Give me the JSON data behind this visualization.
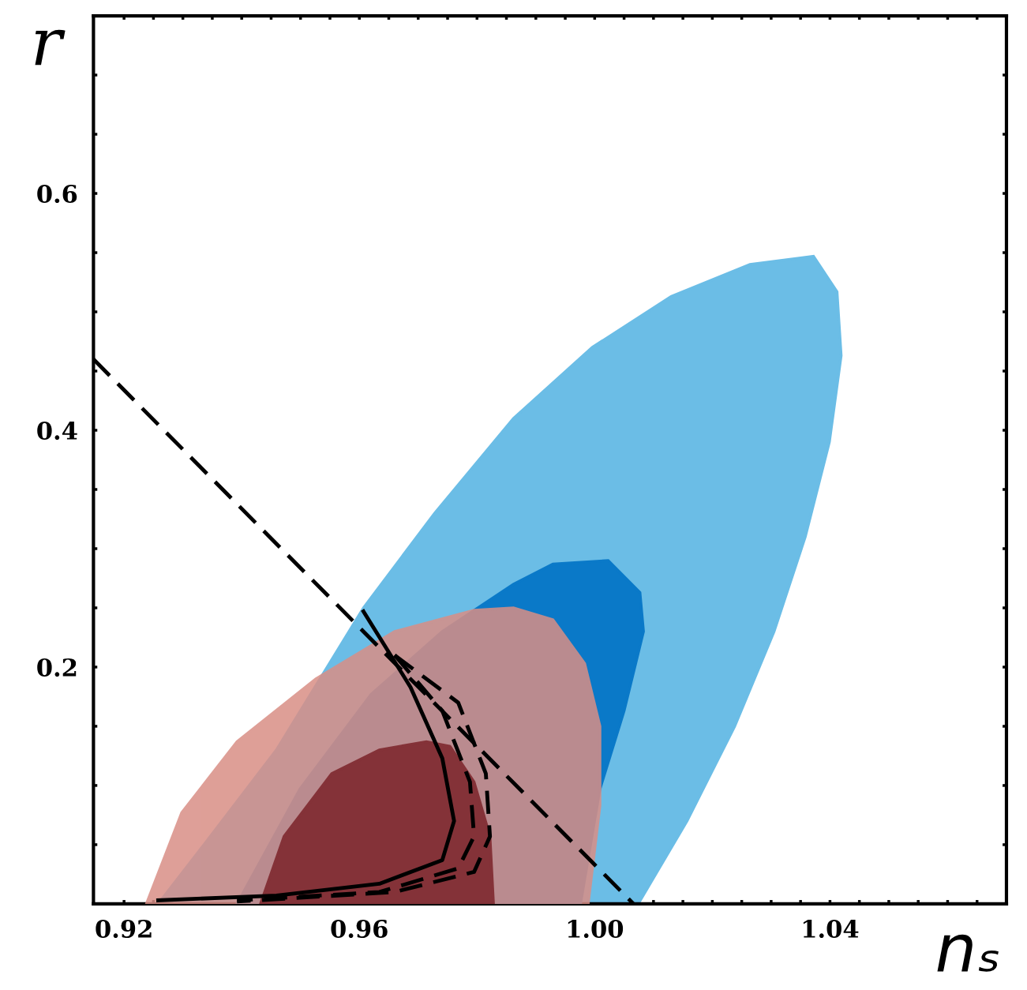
{
  "chart_data": {
    "type": "area",
    "xlabel": "nₛ",
    "ylabel": "r",
    "xlim": [
      0.9148,
      1.07
    ],
    "ylim": [
      0,
      0.75
    ],
    "xticks": [
      {
        "value": 0.92,
        "label": "0.92"
      },
      {
        "value": 0.925,
        "label": null
      },
      {
        "value": 0.93,
        "label": null
      },
      {
        "value": 0.935,
        "label": null
      },
      {
        "value": 0.94,
        "label": null
      },
      {
        "value": 0.945,
        "label": null
      },
      {
        "value": 0.95,
        "label": null
      },
      {
        "value": 0.955,
        "label": null
      },
      {
        "value": 0.96,
        "label": "0.96"
      },
      {
        "value": 0.965,
        "label": null
      },
      {
        "value": 0.97,
        "label": null
      },
      {
        "value": 0.975,
        "label": null
      },
      {
        "value": 0.98,
        "label": null
      },
      {
        "value": 0.985,
        "label": null
      },
      {
        "value": 0.99,
        "label": null
      },
      {
        "value": 0.995,
        "label": null
      },
      {
        "value": 1.0,
        "label": "1.00"
      },
      {
        "value": 1.005,
        "label": null
      },
      {
        "value": 1.01,
        "label": null
      },
      {
        "value": 1.015,
        "label": null
      },
      {
        "value": 1.02,
        "label": null
      },
      {
        "value": 1.025,
        "label": null
      },
      {
        "value": 1.03,
        "label": null
      },
      {
        "value": 1.035,
        "label": null
      },
      {
        "value": 1.04,
        "label": "1.04"
      },
      {
        "value": 1.045,
        "label": null
      },
      {
        "value": 1.05,
        "label": null
      },
      {
        "value": 1.055,
        "label": null
      },
      {
        "value": 1.06,
        "label": null
      },
      {
        "value": 1.065,
        "label": null
      }
    ],
    "yticks": [
      {
        "value": 0.05,
        "label": null
      },
      {
        "value": 0.1,
        "label": null
      },
      {
        "value": 0.15,
        "label": null
      },
      {
        "value": 0.2,
        "label": "0.2"
      },
      {
        "value": 0.25,
        "label": null
      },
      {
        "value": 0.3,
        "label": null
      },
      {
        "value": 0.35,
        "label": null
      },
      {
        "value": 0.4,
        "label": "0.4"
      },
      {
        "value": 0.45,
        "label": null
      },
      {
        "value": 0.5,
        "label": null
      },
      {
        "value": 0.55,
        "label": null
      },
      {
        "value": 0.6,
        "label": "0.6"
      },
      {
        "value": 0.65,
        "label": null
      },
      {
        "value": 0.7,
        "label": null
      }
    ],
    "grid": false,
    "legend": false,
    "series": [
      {
        "color": "#6bbde6",
        "x": [
          0.9258,
          0.9325,
          0.9459,
          0.9607,
          0.9728,
          0.9862,
          0.9996,
          1.013,
          1.0264,
          1.0372,
          1.0412,
          1.0419,
          1.0399,
          1.0358,
          1.0305,
          1.0238,
          1.0157,
          1.0074
        ],
        "values": [
          0,
          0.043,
          0.13,
          0.25,
          0.33,
          0.41,
          0.47,
          0.513,
          0.54,
          0.547,
          0.517,
          0.463,
          0.39,
          0.31,
          0.23,
          0.15,
          0.07,
          0
        ]
      },
      {
        "color": "#0a79c8",
        "x": [
          0.9392,
          0.9499,
          0.962,
          0.9741,
          0.9862,
          0.9929,
          1.0023,
          1.0077,
          1.0083,
          1.005,
          1.0009,
          0.9976
        ],
        "values": [
          0,
          0.097,
          0.177,
          0.23,
          0.27,
          0.287,
          0.29,
          0.263,
          0.23,
          0.163,
          0.097,
          0
        ]
      },
      {
        "color": "#d98f86",
        "x": [
          0.9238,
          0.9298,
          0.9392,
          0.9526,
          0.966,
          0.9795,
          0.9862,
          0.9929,
          0.9983,
          1.0009,
          1.0009,
          0.9989
        ],
        "values": [
          0,
          0.077,
          0.137,
          0.19,
          0.23,
          0.248,
          0.25,
          0.24,
          0.203,
          0.15,
          0.083,
          0
        ]
      },
      {
        "color": "#7b2329",
        "x": [
          0.9432,
          0.9472,
          0.9553,
          0.9634,
          0.9714,
          0.9754,
          0.9795,
          0.9822,
          0.9828
        ],
        "values": [
          0,
          0.057,
          0.11,
          0.13,
          0.137,
          0.133,
          0.103,
          0.057,
          0
        ]
      },
      {
        "type": "line",
        "line_style": "dashed",
        "color": "#000000",
        "x": [
          0.9148,
          1.0066
        ],
        "values": [
          0.46,
          0
        ]
      },
      {
        "type": "line",
        "line_style": "solid",
        "color": "#000000",
        "x": [
          0.9607,
          0.9687,
          0.9741,
          0.9761,
          0.9741,
          0.9634,
          0.9459,
          0.9258
        ],
        "values": [
          0.247,
          0.183,
          0.123,
          0.07,
          0.037,
          0.017,
          0.007,
          0.003
        ]
      },
      {
        "type": "line",
        "line_style": "dashed",
        "color": "#000000",
        "x": [
          0.966,
          0.9741,
          0.9788,
          0.9795,
          0.9768,
          0.9634,
          0.9392
        ],
        "values": [
          0.21,
          0.163,
          0.103,
          0.057,
          0.03,
          0.01,
          0.003
        ]
      },
      {
        "type": "line",
        "line_style": "dashed",
        "color": "#000000",
        "x": [
          0.966,
          0.9768,
          0.9815,
          0.9822,
          0.9795,
          0.966,
          0.9392
        ],
        "values": [
          0.21,
          0.17,
          0.11,
          0.057,
          0.027,
          0.01,
          0.002
        ]
      }
    ]
  }
}
